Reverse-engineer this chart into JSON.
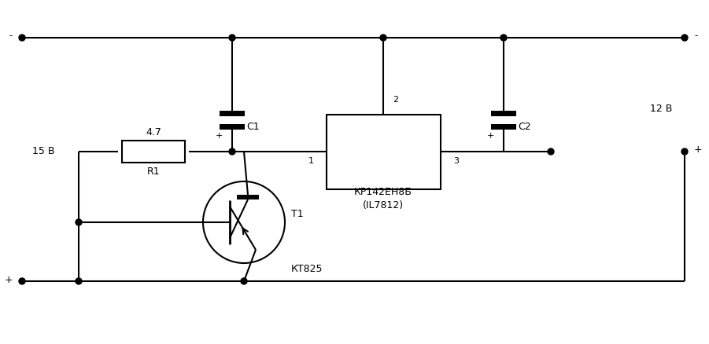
{
  "bg_color": "#ffffff",
  "line_color": "#000000",
  "text_color": "#000000",
  "fig_width": 9.01,
  "fig_height": 4.38,
  "dpi": 100,
  "transistor_label": "КТ825",
  "transistor_name": "T1",
  "ic_label": "КР142ЕН8Б\n(IL7812)",
  "r1_label": "R1",
  "r1_value": "4.7",
  "c1_label": "C1",
  "c2_label": "C2",
  "input_voltage": "15 В",
  "output_voltage": "12 В",
  "pin1": "1",
  "pin2": "2",
  "pin3": "3",
  "plus_in": "+",
  "minus_in": "-",
  "plus_out": "+",
  "minus_out": "-"
}
